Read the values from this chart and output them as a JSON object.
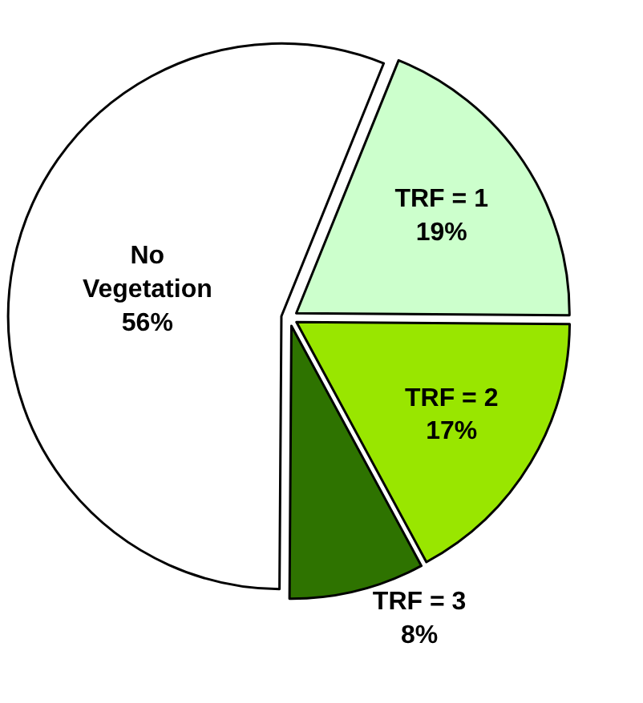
{
  "chart_data": {
    "type": "pie",
    "categories": [
      "TRF = 1",
      "TRF = 2",
      "TRF = 3",
      "No Vegetation"
    ],
    "values": [
      19,
      17,
      8,
      56
    ],
    "colors": [
      "#ccffcc",
      "#99e600",
      "#2e7300",
      "#ffffff"
    ],
    "value_labels": [
      "19%",
      "17%",
      "8%",
      "56%"
    ],
    "legend": false
  }
}
